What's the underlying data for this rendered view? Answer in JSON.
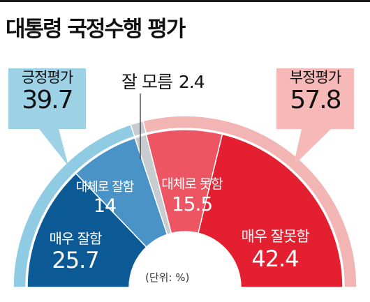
{
  "title": "대통령 국정수행 평가",
  "positive": {
    "label": "긍정평가",
    "value": "39.7"
  },
  "negative": {
    "label": "부정평가",
    "value": "57.8"
  },
  "neutral": {
    "label": "잘 모름",
    "value": "2.4"
  },
  "unit_note": "(단위: %)",
  "colors": {
    "very_good": "#0b5a96",
    "fairly_good": "#4a93c7",
    "neutral": "#c7ccd0",
    "fairly_bad": "#ee5563",
    "very_bad": "#e31f30",
    "positive_ring": "#8fcbe2",
    "negative_ring": "#f3b4b4",
    "positive_box": "#9dd1e6",
    "negative_box": "#f6b9b7"
  },
  "chart_data": {
    "type": "pie",
    "shape": "semicircle-donut",
    "unit": "%",
    "segments": [
      {
        "name": "매우 잘함",
        "value": 25.7,
        "group": "긍정평가"
      },
      {
        "name": "대체로 잘함",
        "value": 14,
        "group": "긍정평가"
      },
      {
        "name": "잘 모름",
        "value": 2.4,
        "group": "잘 모름"
      },
      {
        "name": "대체로 못함",
        "value": 15.5,
        "group": "부정평가"
      },
      {
        "name": "매우 잘못함",
        "value": 42.4,
        "group": "부정평가"
      }
    ],
    "segment_values": [
      "25.7",
      "14",
      "2.4",
      "15.5",
      "42.4"
    ],
    "groups": [
      {
        "name": "긍정평가",
        "value": 39.7
      },
      {
        "name": "잘 모름",
        "value": 2.4
      },
      {
        "name": "부정평가",
        "value": 57.8
      }
    ]
  }
}
